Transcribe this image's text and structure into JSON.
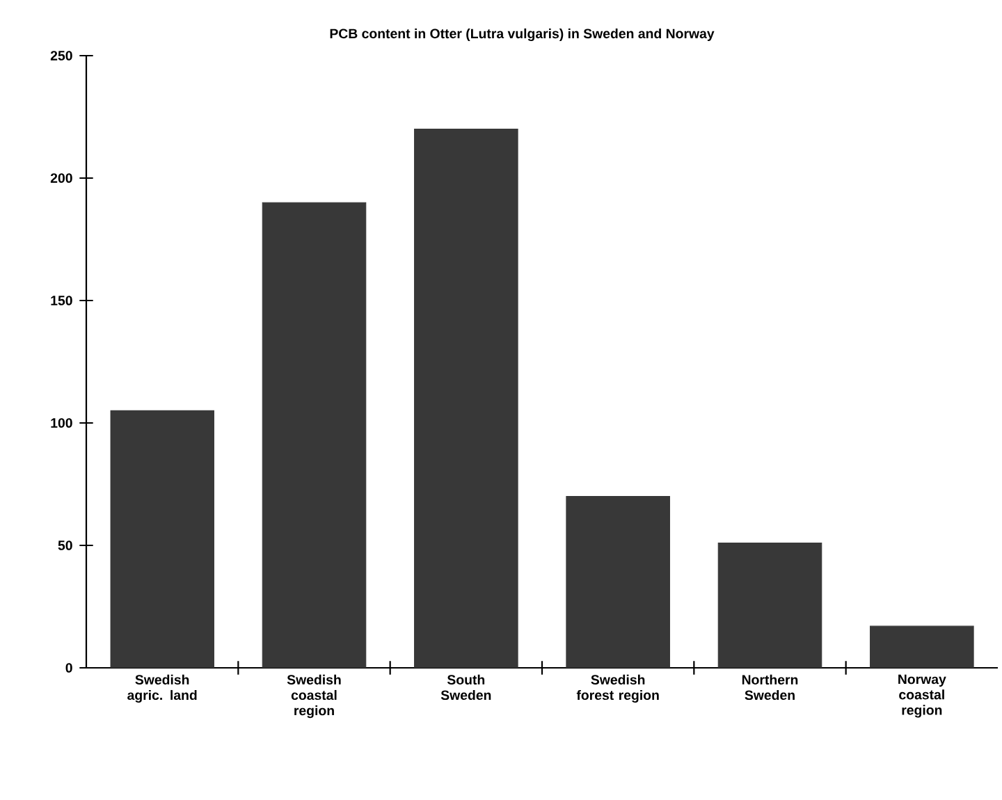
{
  "chart_data": {
    "type": "bar",
    "title": "PCB content in Otter (Lutra vulgaris) in Sweden and Norway",
    "categories": [
      "Swedish agric. land",
      "Swedish coastal region",
      "South Sweden",
      "Swedish forest region",
      "Northern Sweden",
      "Norway coastal region"
    ],
    "values": [
      105,
      190,
      220,
      70,
      51,
      17
    ],
    "color": "#383838",
    "ylim": [
      0,
      250
    ],
    "yticks": [
      0,
      50,
      100,
      150,
      200,
      250
    ],
    "grid": false
  }
}
